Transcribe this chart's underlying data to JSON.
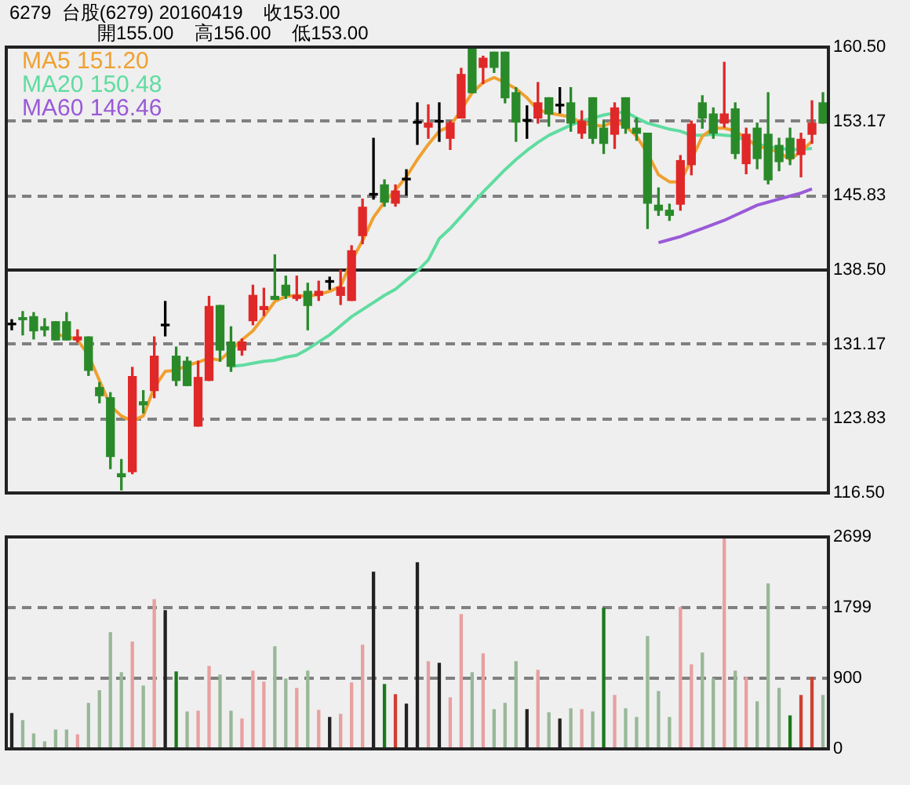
{
  "chart_data": [
    {
      "type": "candlestick",
      "title": "6279  台股(6279) 20160419    收153.00",
      "subtitle": "開155.00    高156.00    低153.00",
      "categories": [
        null,
        null,
        null,
        null,
        null,
        null,
        null,
        null,
        null,
        null,
        null,
        null,
        null,
        null,
        null,
        null,
        null,
        null,
        null,
        null,
        null,
        null,
        null,
        null,
        null,
        null,
        null,
        null,
        null,
        null,
        null,
        null,
        null,
        null,
        null,
        null,
        null,
        null,
        null,
        null,
        null,
        null,
        null,
        null,
        null,
        null,
        null,
        null,
        null,
        null,
        null,
        null,
        null,
        null,
        null,
        null,
        null,
        null,
        null,
        null,
        null,
        null,
        null,
        null,
        null,
        null,
        null,
        null,
        null,
        null,
        null,
        null,
        null,
        null,
        null
      ],
      "ohlc": [
        [
          133.1,
          133.6,
          132.6,
          133.1
        ],
        [
          133.8,
          134.4,
          132.1,
          133.6
        ],
        [
          133.9,
          134.3,
          131.7,
          132.5
        ],
        [
          132.9,
          133.7,
          132.0,
          132.6
        ],
        [
          133.4,
          133.4,
          131.6,
          131.6
        ],
        [
          133.4,
          134.3,
          131.6,
          131.6
        ],
        [
          131.6,
          132.6,
          131.4,
          131.9
        ],
        [
          131.9,
          131.9,
          128.1,
          128.6
        ],
        [
          126.9,
          127.4,
          125.4,
          126.1
        ],
        [
          125.9,
          126.4,
          118.9,
          120.1
        ],
        [
          118.4,
          119.8,
          116.8,
          118.1
        ],
        [
          118.6,
          128.9,
          118.4,
          128.0
        ],
        [
          125.5,
          126.6,
          124.4,
          125.2
        ],
        [
          126.6,
          131.9,
          125.9,
          130.0
        ],
        [
          133.0,
          135.4,
          132.0,
          133.0
        ],
        [
          130.0,
          130.9,
          127.1,
          127.6
        ],
        [
          129.5,
          129.9,
          127.1,
          127.1
        ],
        [
          123.1,
          129.5,
          123.1,
          127.9
        ],
        [
          127.6,
          135.9,
          127.6,
          134.9
        ],
        [
          135.0,
          135.0,
          129.5,
          130.6
        ],
        [
          131.4,
          132.9,
          128.5,
          129.0
        ],
        [
          130.6,
          131.7,
          130.1,
          131.4
        ],
        [
          133.5,
          137.0,
          133.1,
          136.0
        ],
        [
          134.6,
          136.7,
          134.0,
          134.9
        ],
        [
          135.9,
          140.0,
          135.6,
          135.6
        ],
        [
          137.0,
          137.9,
          135.7,
          136.0
        ],
        [
          135.7,
          137.9,
          135.5,
          136.0
        ],
        [
          136.4,
          137.2,
          132.6,
          135.0
        ],
        [
          136.0,
          137.4,
          135.5,
          136.4
        ],
        [
          137.3,
          137.8,
          136.6,
          137.3
        ],
        [
          136.0,
          138.5,
          135.1,
          136.8
        ],
        [
          135.5,
          140.9,
          135.5,
          140.4
        ],
        [
          141.9,
          145.5,
          141.1,
          144.7
        ],
        [
          145.9,
          151.5,
          145.5,
          145.9
        ],
        [
          146.9,
          147.4,
          144.8,
          145.2
        ],
        [
          145.1,
          146.9,
          144.8,
          146.3
        ],
        [
          147.4,
          148.4,
          145.9,
          147.4
        ],
        [
          153.0,
          155.0,
          150.9,
          153.0
        ],
        [
          152.6,
          154.8,
          151.5,
          153.0
        ],
        [
          153.1,
          155.0,
          151.2,
          153.1
        ],
        [
          151.5,
          153.2,
          150.4,
          153.0
        ],
        [
          153.5,
          158.4,
          153.5,
          157.8
        ],
        [
          160.3,
          160.5,
          156.0,
          156.0
        ],
        [
          158.5,
          159.6,
          156.9,
          159.4
        ],
        [
          160.0,
          160.0,
          158.0,
          158.5
        ],
        [
          160.0,
          160.0,
          155.0,
          155.5
        ],
        [
          156.0,
          156.5,
          151.2,
          153.1
        ],
        [
          153.2,
          154.7,
          151.5,
          153.2
        ],
        [
          153.5,
          157.0,
          153.0,
          155.0
        ],
        [
          155.5,
          155.5,
          152.7,
          153.9
        ],
        [
          154.7,
          156.5,
          154.0,
          154.7
        ],
        [
          155.0,
          156.5,
          152.2,
          153.0
        ],
        [
          152.0,
          154.2,
          151.5,
          153.2
        ],
        [
          155.5,
          155.5,
          151.0,
          151.5
        ],
        [
          152.5,
          153.2,
          150.0,
          151.0
        ],
        [
          151.9,
          155.0,
          150.5,
          154.5
        ],
        [
          155.5,
          155.5,
          152.0,
          152.5
        ],
        [
          152.5,
          153.5,
          151.3,
          152.0
        ],
        [
          152.0,
          152.0,
          142.6,
          145.1
        ],
        [
          144.9,
          146.6,
          143.9,
          144.4
        ],
        [
          144.4,
          145.0,
          143.4,
          143.9
        ],
        [
          145.0,
          149.8,
          144.4,
          149.3
        ],
        [
          148.9,
          153.2,
          147.9,
          152.9
        ],
        [
          155.0,
          155.7,
          152.5,
          153.5
        ],
        [
          153.9,
          154.5,
          151.5,
          152.0
        ],
        [
          153.0,
          159.0,
          152.6,
          153.9
        ],
        [
          154.4,
          155.0,
          149.5,
          150.0
        ],
        [
          149.0,
          152.5,
          148.0,
          151.9
        ],
        [
          152.5,
          153.0,
          148.5,
          149.5
        ],
        [
          151.9,
          156.0,
          147.0,
          147.4
        ],
        [
          150.8,
          151.5,
          148.3,
          149.2
        ],
        [
          151.5,
          152.5,
          148.9,
          149.5
        ],
        [
          149.9,
          152.0,
          147.7,
          151.4
        ],
        [
          151.9,
          155.2,
          151.0,
          153.0
        ],
        [
          155.0,
          156.0,
          153.0,
          153.0
        ]
      ],
      "colors": [
        "#000000",
        "#2a8a2a",
        "#2a8a2a",
        "#2a8a2a",
        "#2a8a2a",
        "#2a8a2a",
        "#e02828",
        "#2a8a2a",
        "#2a8a2a",
        "#2a8a2a",
        "#2a8a2a",
        "#e02828",
        "#2a8a2a",
        "#e02828",
        "#000000",
        "#2a8a2a",
        "#2a8a2a",
        "#e02828",
        "#e02828",
        "#2a8a2a",
        "#2a8a2a",
        "#e02828",
        "#e02828",
        "#e02828",
        "#2a8a2a",
        "#2a8a2a",
        "#e02828",
        "#2a8a2a",
        "#e02828",
        "#000000",
        "#e02828",
        "#e02828",
        "#e02828",
        "#000000",
        "#2a8a2a",
        "#e02828",
        "#000000",
        "#000000",
        "#e02828",
        "#000000",
        "#e02828",
        "#e02828",
        "#2a8a2a",
        "#e02828",
        "#2a8a2a",
        "#2a8a2a",
        "#2a8a2a",
        "#000000",
        "#e02828",
        "#2a8a2a",
        "#000000",
        "#2a8a2a",
        "#e02828",
        "#2a8a2a",
        "#2a8a2a",
        "#e02828",
        "#2a8a2a",
        "#2a8a2a",
        "#2a8a2a",
        "#2a8a2a",
        "#2a8a2a",
        "#e02828",
        "#e02828",
        "#2a8a2a",
        "#2a8a2a",
        "#e02828",
        "#2a8a2a",
        "#e02828",
        "#2a8a2a",
        "#2a8a2a",
        "#2a8a2a",
        "#2a8a2a",
        "#e02828",
        "#e02828",
        "#2a8a2a"
      ],
      "series": [
        {
          "name": "MA5 151.20",
          "color": "#f0a030",
          "type": "line",
          "values": [
            null,
            null,
            null,
            null,
            132.1,
            132.0,
            131.6,
            130.1,
            127.6,
            125.1,
            124.1,
            123.6,
            124.1,
            126.9,
            128.5,
            128.6,
            129.1,
            129.4,
            129.8,
            129.6,
            130.6,
            131.6,
            132.5,
            133.9,
            135.4,
            135.9,
            136.0,
            135.9,
            136.1,
            136.4,
            136.9,
            139.4,
            141.4,
            143.7,
            145.2,
            146.4,
            147.7,
            149.4,
            150.9,
            152.2,
            152.7,
            154.3,
            156.0,
            157.0,
            157.5,
            157.0,
            156.4,
            155.5,
            154.3,
            154.0,
            153.8,
            153.6,
            153.0,
            152.8,
            152.7,
            153.2,
            152.7,
            151.7,
            150.0,
            147.9,
            147.2,
            147.2,
            149.4,
            151.7,
            152.5,
            152.5,
            152.2,
            151.5,
            150.7,
            150.5,
            150.1,
            149.4,
            150.2,
            151.2,
            null
          ]
        },
        {
          "name": "MA20 150.48",
          "color": "#60dca0",
          "type": "line",
          "values": [
            null,
            null,
            null,
            null,
            null,
            null,
            null,
            null,
            null,
            null,
            null,
            null,
            null,
            null,
            null,
            null,
            null,
            null,
            null,
            null,
            129.0,
            129.1,
            129.3,
            129.5,
            129.6,
            129.9,
            130.1,
            130.7,
            131.4,
            132.1,
            133.0,
            133.9,
            134.6,
            135.3,
            136.0,
            136.6,
            137.5,
            138.4,
            139.5,
            141.6,
            142.6,
            143.8,
            145.0,
            146.2,
            147.3,
            148.4,
            149.4,
            150.3,
            151.1,
            151.8,
            152.3,
            152.8,
            153.2,
            153.5,
            153.8,
            154.0,
            154.1,
            153.5,
            153.0,
            152.7,
            152.4,
            152.2,
            151.8,
            151.8,
            151.9,
            151.8,
            151.7,
            151.3,
            150.9,
            150.7,
            150.5,
            150.4,
            150.4,
            150.5,
            null
          ]
        },
        {
          "name": "MA60 146.46",
          "color": "#9a5ad8",
          "type": "line",
          "values": [
            null,
            null,
            null,
            null,
            null,
            null,
            null,
            null,
            null,
            null,
            null,
            null,
            null,
            null,
            null,
            null,
            null,
            null,
            null,
            null,
            null,
            null,
            null,
            null,
            null,
            null,
            null,
            null,
            null,
            null,
            null,
            null,
            null,
            null,
            null,
            null,
            null,
            null,
            null,
            null,
            null,
            null,
            null,
            null,
            null,
            null,
            null,
            null,
            null,
            null,
            null,
            null,
            null,
            null,
            null,
            null,
            null,
            null,
            null,
            141.2,
            141.5,
            141.8,
            142.2,
            142.6,
            143.0,
            143.4,
            143.9,
            144.4,
            144.9,
            145.2,
            145.5,
            145.8,
            146.1,
            146.5,
            null
          ]
        }
      ],
      "ylim": [
        116.5,
        160.5
      ],
      "yticks": [
        {
          "value": 116.5,
          "label": "116.50"
        },
        123.83,
        131.17,
        {
          "value": 138.5,
          "label": "138.50"
        },
        145.83,
        153.17,
        {
          "value": 160.5,
          "label": "160.50"
        }
      ],
      "grid": "y",
      "tick_labels": "y",
      "legend": "top left",
      "ref_lines": [
        {
          "axis": "y",
          "value": 138.5,
          "color": "#222222",
          "line_style": "solid"
        }
      ]
    },
    {
      "type": "bar",
      "categories": [
        null,
        null,
        null,
        null,
        null,
        null,
        null,
        null,
        null,
        null,
        null,
        null,
        null,
        null,
        null,
        null,
        null,
        null,
        null,
        null,
        null,
        null,
        null,
        null,
        null,
        null,
        null,
        null,
        null,
        null,
        null,
        null,
        null,
        null,
        null,
        null,
        null,
        null,
        null,
        null,
        null,
        null,
        null,
        null,
        null,
        null,
        null,
        null,
        null,
        null,
        null,
        null,
        null,
        null,
        null,
        null,
        null,
        null,
        null,
        null,
        null,
        null,
        null,
        null,
        null,
        null,
        null,
        null,
        null,
        null,
        null,
        null,
        null,
        null,
        null
      ],
      "values": [
        450,
        360,
        190,
        90,
        240,
        240,
        180,
        580,
        740,
        1480,
        970,
        1360,
        800,
        1900,
        1760,
        980,
        470,
        480,
        1050,
        940,
        480,
        380,
        990,
        850,
        1300,
        890,
        770,
        990,
        490,
        400,
        440,
        840,
        1320,
        2250,
        820,
        690,
        570,
        2370,
        1110,
        1090,
        650,
        1710,
        970,
        1210,
        500,
        580,
        1110,
        500,
        1000,
        460,
        380,
        510,
        500,
        470,
        1790,
        680,
        510,
        400,
        1430,
        730,
        400,
        1800,
        1070,
        1220,
        890,
        2690,
        990,
        910,
        600,
        2100,
        770,
        420,
        680,
        910,
        680
      ],
      "colors": [
        "#222222",
        "#98b898",
        "#98b898",
        "#98b898",
        "#98b898",
        "#98b898",
        "#e8a0a0",
        "#98b898",
        "#98b898",
        "#98b898",
        "#98b898",
        "#e8a0a0",
        "#98b898",
        "#e8a0a0",
        "#222222",
        "#1a7a1a",
        "#98b898",
        "#e8a0a0",
        "#e8a0a0",
        "#98b898",
        "#98b898",
        "#e8a0a0",
        "#e8a0a0",
        "#e8a0a0",
        "#98b898",
        "#98b898",
        "#e8a0a0",
        "#98b898",
        "#e8a0a0",
        "#222222",
        "#e8a0a0",
        "#e8a0a0",
        "#e8a0a0",
        "#222222",
        "#1a7a1a",
        "#d04030",
        "#222222",
        "#222222",
        "#e8a0a0",
        "#222222",
        "#e8a0a0",
        "#e8a0a0",
        "#98b898",
        "#e8a0a0",
        "#98b898",
        "#98b898",
        "#98b898",
        "#222222",
        "#e8a0a0",
        "#98b898",
        "#222222",
        "#98b898",
        "#e8a0a0",
        "#98b898",
        "#1a7a1a",
        "#e8a0a0",
        "#98b898",
        "#98b898",
        "#98b898",
        "#98b898",
        "#98b898",
        "#e8a0a0",
        "#e8a0a0",
        "#98b898",
        "#98b898",
        "#e8a0a0",
        "#98b898",
        "#e8a0a0",
        "#98b898",
        "#98b898",
        "#98b898",
        "#1a7a1a",
        "#d04030",
        "#d04030",
        "#98b898"
      ],
      "ylim": [
        0,
        2699
      ],
      "yticks": [
        0,
        900,
        1799,
        2699
      ],
      "grid": "y",
      "tick_labels": "y"
    }
  ]
}
